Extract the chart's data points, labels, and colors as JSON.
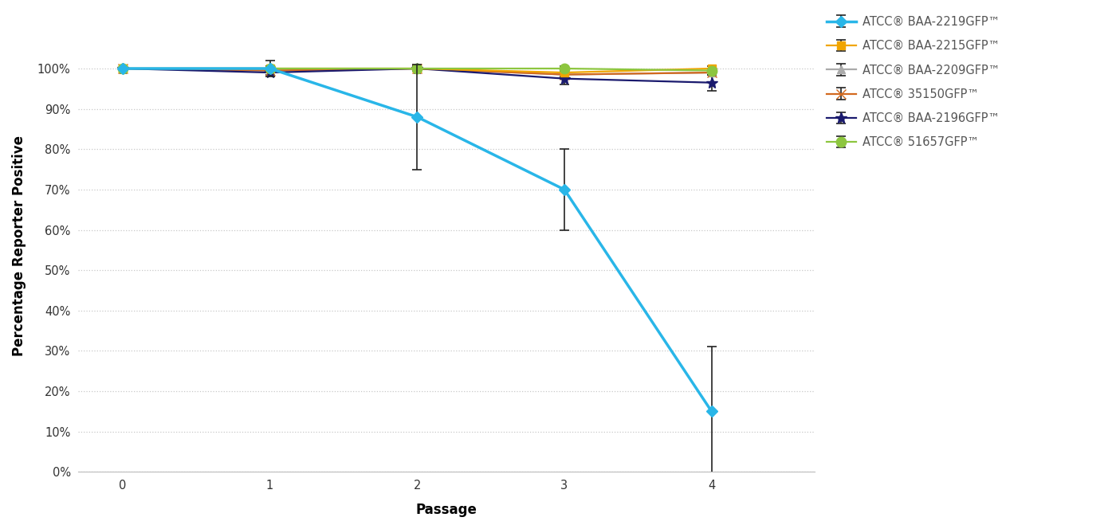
{
  "series": [
    {
      "label": "ATCC® BAA-2219GFP™",
      "color": "#29b6e8",
      "marker": "D",
      "markersize": 7,
      "linewidth": 2.5,
      "x": [
        0,
        1,
        2,
        3,
        4
      ],
      "y": [
        100.0,
        100.0,
        88.0,
        70.0,
        15.0
      ],
      "yerr": [
        0.0,
        2.0,
        13.0,
        10.0,
        16.0
      ],
      "zorder": 5
    },
    {
      "label": "ATCC® BAA-2215GFP™",
      "color": "#f0a500",
      "marker": "s",
      "markersize": 7,
      "linewidth": 1.6,
      "x": [
        0,
        1,
        2,
        3,
        4
      ],
      "y": [
        100.0,
        100.0,
        100.0,
        99.0,
        100.0
      ],
      "yerr": [
        0.0,
        0.5,
        0.5,
        1.0,
        0.5
      ],
      "zorder": 4
    },
    {
      "label": "ATCC® BAA-2209GFP™",
      "color": "#aaaaaa",
      "marker": "^",
      "markersize": 7,
      "linewidth": 1.6,
      "x": [
        0,
        1,
        2,
        3,
        4
      ],
      "y": [
        100.0,
        99.5,
        100.0,
        98.5,
        99.0
      ],
      "yerr": [
        0.0,
        0.5,
        0.5,
        1.0,
        0.5
      ],
      "zorder": 3
    },
    {
      "label": "ATCC® 35150GFP™",
      "color": "#d2691e",
      "marker": "x",
      "markersize": 9,
      "linewidth": 1.6,
      "x": [
        0,
        1,
        2,
        3,
        4
      ],
      "y": [
        100.0,
        99.5,
        100.0,
        98.5,
        99.0
      ],
      "yerr": [
        0.0,
        0.5,
        0.5,
        1.0,
        0.5
      ],
      "zorder": 3
    },
    {
      "label": "ATCC® BAA-2196GFP™",
      "color": "#1a1a6e",
      "marker": "*",
      "markersize": 10,
      "linewidth": 1.6,
      "x": [
        0,
        1,
        2,
        3,
        4
      ],
      "y": [
        100.0,
        99.0,
        100.0,
        97.5,
        96.5
      ],
      "yerr": [
        0.0,
        0.5,
        0.5,
        1.5,
        2.0
      ],
      "zorder": 3
    },
    {
      "label": "ATCC® 51657GFP™",
      "color": "#8dc63f",
      "marker": "o",
      "markersize": 9,
      "linewidth": 1.6,
      "x": [
        0,
        1,
        2,
        3,
        4
      ],
      "y": [
        100.0,
        100.0,
        100.0,
        100.0,
        99.5
      ],
      "yerr": [
        0.0,
        0.5,
        0.5,
        0.5,
        0.5
      ],
      "zorder": 4
    }
  ],
  "xlabel": "Passage",
  "ylabel": "Percentage Reporter Positive",
  "xlim": [
    -0.3,
    4.7
  ],
  "ylim": [
    0.0,
    112.0
  ],
  "xticks": [
    0,
    1,
    2,
    3,
    4
  ],
  "yticks": [
    0,
    10,
    20,
    30,
    40,
    50,
    60,
    70,
    80,
    90,
    100
  ],
  "ytick_labels": [
    "0%",
    "10%",
    "20%",
    "30%",
    "40%",
    "50%",
    "60%",
    "70%",
    "80%",
    "90%",
    "100%"
  ],
  "background_color": "#ffffff",
  "grid_color": "#c8c8c8",
  "legend_fontsize": 10.5,
  "axis_label_fontsize": 12,
  "tick_fontsize": 10.5
}
